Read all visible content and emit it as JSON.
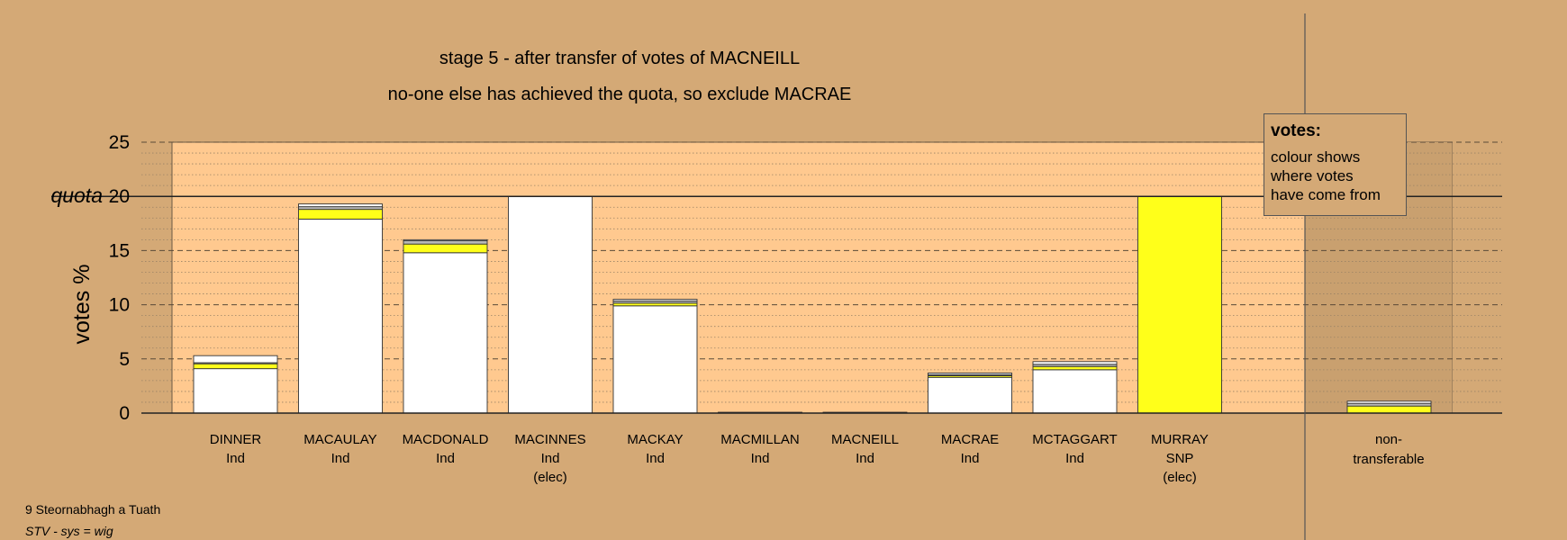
{
  "chart_data": {
    "type": "bar",
    "title": "stage 5 - after transfer of votes of MACNEILL",
    "subtitle": "no-one else has achieved the quota, so exclude MACRAE",
    "ylabel": "votes %",
    "ylim": [
      0,
      25
    ],
    "yticks": [
      "0",
      "5",
      "10",
      "15",
      "20",
      "25"
    ],
    "quota": {
      "value": 20,
      "label": "quota"
    },
    "grid": true,
    "candidates": [
      {
        "name": "DINNER",
        "party": "Ind",
        "status": "",
        "segments": [
          {
            "value": 4.1,
            "color": "#ffffff"
          },
          {
            "value": 0.45,
            "color": "#ffff1a"
          },
          {
            "value": 0.1,
            "color": "#b8b8b8"
          },
          {
            "value": 0.65,
            "color": "#ffffff"
          }
        ]
      },
      {
        "name": "MACAULAY",
        "party": "Ind",
        "status": "",
        "segments": [
          {
            "value": 17.9,
            "color": "#ffffff"
          },
          {
            "value": 0.9,
            "color": "#ffff1a"
          },
          {
            "value": 0.25,
            "color": "#b8b8b8"
          },
          {
            "value": 0.25,
            "color": "#ffffff"
          }
        ]
      },
      {
        "name": "MACDONALD",
        "party": "Ind",
        "status": "",
        "segments": [
          {
            "value": 14.8,
            "color": "#ffffff"
          },
          {
            "value": 0.8,
            "color": "#ffff1a"
          },
          {
            "value": 0.3,
            "color": "#b8b8b8"
          },
          {
            "value": 0.1,
            "color": "#ffffff"
          }
        ]
      },
      {
        "name": "MACINNES",
        "party": "Ind",
        "status": "(elec)",
        "segments": [
          {
            "value": 20.0,
            "color": "#ffffff"
          }
        ]
      },
      {
        "name": "MACKAY",
        "party": "Ind",
        "status": "",
        "segments": [
          {
            "value": 9.9,
            "color": "#ffffff"
          },
          {
            "value": 0.25,
            "color": "#ffff1a"
          },
          {
            "value": 0.2,
            "color": "#b8b8b8"
          },
          {
            "value": 0.15,
            "color": "#ffffff"
          }
        ]
      },
      {
        "name": "MACMILLAN",
        "party": "Ind",
        "status": "",
        "segments": [
          {
            "value": 0.08,
            "color": "#ffffff"
          }
        ]
      },
      {
        "name": "MACNEILL",
        "party": "Ind",
        "status": "",
        "segments": [
          {
            "value": 0.08,
            "color": "#ffffff"
          }
        ]
      },
      {
        "name": "MACRAE",
        "party": "Ind",
        "status": "",
        "segments": [
          {
            "value": 3.3,
            "color": "#ffffff"
          },
          {
            "value": 0.15,
            "color": "#ffff1a"
          },
          {
            "value": 0.1,
            "color": "#b8b8b8"
          },
          {
            "value": 0.15,
            "color": "#ffffff"
          }
        ]
      },
      {
        "name": "MCTAGGART",
        "party": "Ind",
        "status": "",
        "segments": [
          {
            "value": 4.0,
            "color": "#ffffff"
          },
          {
            "value": 0.3,
            "color": "#ffff1a"
          },
          {
            "value": 0.2,
            "color": "#b8b8b8"
          },
          {
            "value": 0.25,
            "color": "#ffffff"
          }
        ]
      },
      {
        "name": "MURRAY",
        "party": "SNP",
        "status": "(elec)",
        "segments": [
          {
            "value": 20.0,
            "color": "#ffff1a"
          }
        ]
      }
    ],
    "nontransferable": {
      "label_line1": "non-",
      "label_line2": "transferable",
      "segments": [
        {
          "value": 0.65,
          "color": "#ffff1a"
        },
        {
          "value": 0.25,
          "color": "#b8b8b8"
        },
        {
          "value": 0.2,
          "color": "#ffffff"
        }
      ]
    },
    "legend": {
      "title": "votes:",
      "lines": [
        "colour shows",
        "where votes",
        "have come from"
      ],
      "placement": "top-right"
    }
  },
  "footer": {
    "line1": "9 Steornabhagh a Tuath",
    "line2": "STV - sys = wig"
  },
  "colors": {
    "background": "#d4a976",
    "plot_area": "#ffc98f",
    "plot_shade": "#c9a06f"
  }
}
